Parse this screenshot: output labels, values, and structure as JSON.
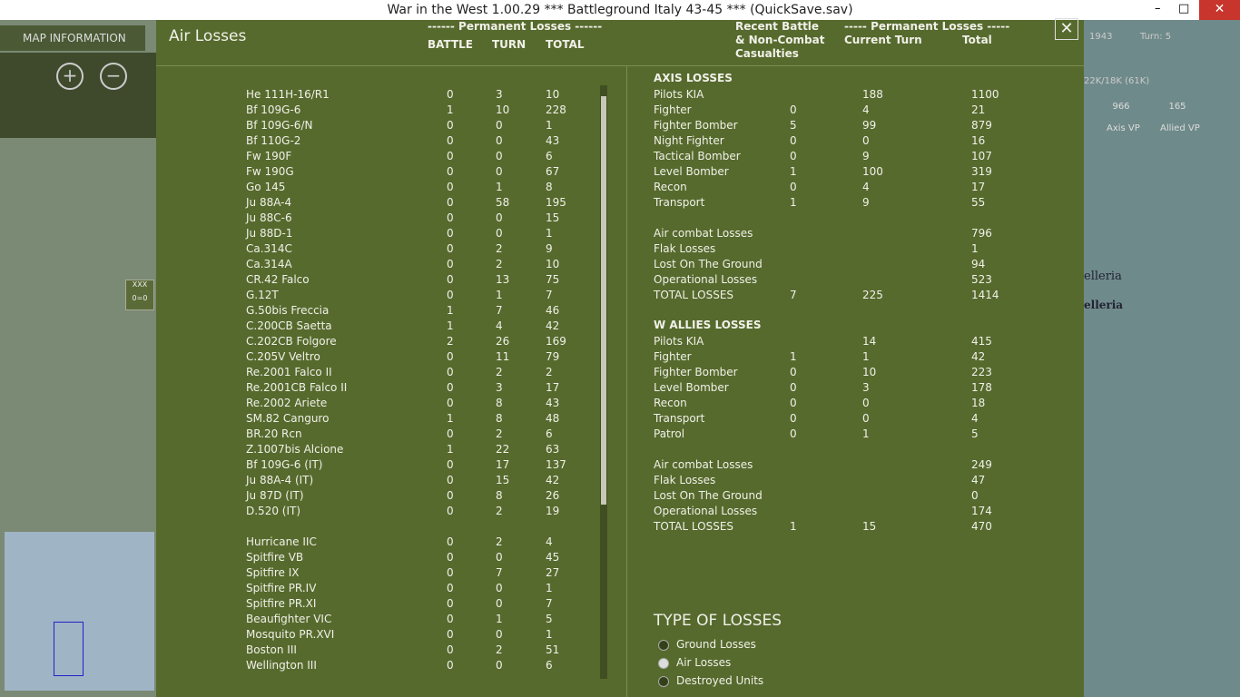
{
  "window": {
    "title": "War in the West 1.00.29     ***   Battleground Italy 43-45    ***   (QuickSave.sav)"
  },
  "sidebar": {
    "map_information": "MAP INFORMATION",
    "unit_label": "0=0",
    "unit_tag": "XXX"
  },
  "status": {
    "year": "1943",
    "turn": "Turn: 5",
    "strength": "22K/18K (61K)",
    "axis_vp": 966,
    "allied_vp": 165,
    "axis_vp_label": "Axis VP",
    "allied_vp_label": "Allied VP",
    "map_label_1": "elleria",
    "map_label_2": "elleria"
  },
  "dialog": {
    "title": "Air Losses",
    "left_header": {
      "group": "------ Permanent Losses ------",
      "battle": "BATTLE",
      "turn": "TURN",
      "total": "TOTAL"
    },
    "axis_aircraft": [
      [
        "He 111H-16/R1",
        0,
        3,
        10
      ],
      [
        "Bf 109G-6",
        1,
        10,
        228
      ],
      [
        "Bf 109G-6/N",
        0,
        0,
        1
      ],
      [
        "Bf 110G-2",
        0,
        0,
        43
      ],
      [
        "Fw 190F",
        0,
        0,
        6
      ],
      [
        "Fw 190G",
        0,
        0,
        67
      ],
      [
        "Go 145",
        0,
        1,
        8
      ],
      [
        "Ju 88A-4",
        0,
        58,
        195
      ],
      [
        "Ju 88C-6",
        0,
        0,
        15
      ],
      [
        "Ju 88D-1",
        0,
        0,
        1
      ],
      [
        "Ca.314C",
        0,
        2,
        9
      ],
      [
        "Ca.314A",
        0,
        2,
        10
      ],
      [
        "CR.42 Falco",
        0,
        13,
        75
      ],
      [
        "G.12T",
        0,
        1,
        7
      ],
      [
        "G.50bis Freccia",
        1,
        7,
        46
      ],
      [
        "C.200CB Saetta",
        1,
        4,
        42
      ],
      [
        "C.202CB Folgore",
        2,
        26,
        169
      ],
      [
        "C.205V Veltro",
        0,
        11,
        79
      ],
      [
        "Re.2001 Falco II",
        0,
        2,
        2
      ],
      [
        "Re.2001CB Falco II",
        0,
        3,
        17
      ],
      [
        "Re.2002 Ariete",
        0,
        8,
        43
      ],
      [
        "SM.82 Canguro",
        1,
        8,
        48
      ],
      [
        "BR.20 Rcn",
        0,
        2,
        6
      ],
      [
        "Z.1007bis Alcione",
        1,
        22,
        63
      ],
      [
        "Bf 109G-6 (IT)",
        0,
        17,
        137
      ],
      [
        "Ju 88A-4 (IT)",
        0,
        15,
        42
      ],
      [
        "Ju 87D (IT)",
        0,
        8,
        26
      ],
      [
        "D.520 (IT)",
        0,
        2,
        19
      ]
    ],
    "allied_aircraft": [
      [
        "Hurricane IIC",
        0,
        2,
        4
      ],
      [
        "Spitfire VB",
        0,
        0,
        45
      ],
      [
        "Spitfire IX",
        0,
        7,
        27
      ],
      [
        "Spitfire PR.IV",
        0,
        0,
        1
      ],
      [
        "Spitfire PR.XI",
        0,
        0,
        7
      ],
      [
        "Beaufighter VIC",
        0,
        1,
        5
      ],
      [
        "Mosquito PR.XVI",
        0,
        0,
        1
      ],
      [
        "Boston III",
        0,
        2,
        51
      ],
      [
        "Wellington III",
        0,
        0,
        6
      ]
    ],
    "right_header": {
      "recent_1": "Recent Battle",
      "recent_2": "& Non-Combat",
      "recent_3": "Casualties",
      "group": "----- Permanent Losses -----",
      "current_turn": "Current Turn",
      "total": "Total"
    },
    "axis_losses": {
      "heading": "AXIS LOSSES",
      "rows": [
        [
          "Pilots KIA",
          null,
          188,
          1100
        ],
        [
          "Fighter",
          0,
          4,
          21
        ],
        [
          "Fighter Bomber",
          5,
          99,
          879
        ],
        [
          "Night Fighter",
          0,
          0,
          16
        ],
        [
          "Tactical Bomber",
          0,
          9,
          107
        ],
        [
          "Level Bomber",
          1,
          100,
          319
        ],
        [
          "Recon",
          0,
          4,
          17
        ],
        [
          "Transport",
          1,
          9,
          55
        ]
      ],
      "summary": [
        [
          "Air combat Losses",
          null,
          null,
          796
        ],
        [
          "Flak Losses",
          null,
          null,
          1
        ],
        [
          "Lost On The Ground",
          null,
          null,
          94
        ],
        [
          "Operational Losses",
          null,
          null,
          523
        ],
        [
          "TOTAL LOSSES",
          7,
          225,
          1414
        ]
      ]
    },
    "allied_losses": {
      "heading": "W ALLIES LOSSES",
      "rows": [
        [
          "Pilots KIA",
          null,
          14,
          415
        ],
        [
          "Fighter",
          1,
          1,
          42
        ],
        [
          "Fighter Bomber",
          0,
          10,
          223
        ],
        [
          "Level Bomber",
          0,
          3,
          178
        ],
        [
          "Recon",
          0,
          0,
          18
        ],
        [
          "Transport",
          0,
          0,
          4
        ],
        [
          "Patrol",
          0,
          1,
          5
        ]
      ],
      "summary": [
        [
          "Air combat Losses",
          null,
          null,
          249
        ],
        [
          "Flak Losses",
          null,
          null,
          47
        ],
        [
          "Lost On The Ground",
          null,
          null,
          0
        ],
        [
          "Operational Losses",
          null,
          null,
          174
        ],
        [
          "TOTAL LOSSES",
          1,
          15,
          470
        ]
      ]
    },
    "type_of_losses": {
      "title": "TYPE OF LOSSES",
      "options": [
        "Ground Losses",
        "Air Losses",
        "Destroyed Units"
      ],
      "selected": 1
    }
  }
}
